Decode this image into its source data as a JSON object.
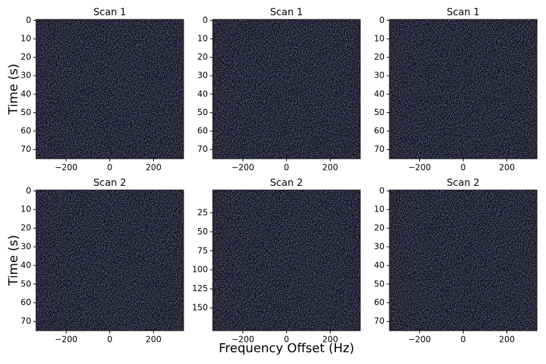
{
  "chart_data": [
    {
      "type": "heatmap",
      "title": "Scan 1",
      "ylabel": "Time (s)",
      "xlim": [
        -338,
        338
      ],
      "ylim": [
        75,
        -0.5
      ],
      "xticks": [
        {
          "value": -200,
          "label": "−200"
        },
        0,
        200
      ],
      "yticks": [
        0,
        10,
        20,
        30,
        40,
        50,
        60,
        70
      ]
    },
    {
      "type": "heatmap",
      "title": "Scan 1",
      "xlim": [
        -338,
        338
      ],
      "ylim": [
        75,
        -0.5
      ],
      "xticks": [
        {
          "value": -200,
          "label": "−200"
        },
        0,
        200
      ],
      "yticks": [
        0,
        10,
        20,
        30,
        40,
        50,
        60,
        70
      ]
    },
    {
      "type": "heatmap",
      "title": "Scan 1",
      "xlim": [
        -338,
        338
      ],
      "ylim": [
        75,
        -0.5
      ],
      "xticks": [
        {
          "value": -200,
          "label": "−200"
        },
        0,
        200
      ],
      "yticks": [
        0,
        10,
        20,
        30,
        40,
        50,
        60,
        70
      ]
    },
    {
      "type": "heatmap",
      "title": "Scan 2",
      "ylabel": "Time (s)",
      "xlim": [
        -338,
        338
      ],
      "ylim": [
        75,
        -0.5
      ],
      "xticks": [
        {
          "value": -200,
          "label": "−200"
        },
        0,
        200
      ],
      "yticks": [
        0,
        10,
        20,
        30,
        40,
        50,
        60,
        70
      ]
    },
    {
      "type": "heatmap",
      "title": "Scan 2",
      "xlabel": "Frequency Offset (Hz)",
      "xlim": [
        -338,
        338
      ],
      "ylim": [
        180,
        -5
      ],
      "xticks": [
        {
          "value": -200,
          "label": "−200"
        },
        0,
        200
      ],
      "yticks": [
        25,
        50,
        75,
        100,
        125,
        150
      ]
    },
    {
      "type": "heatmap",
      "title": "Scan 2",
      "xlim": [
        -338,
        338
      ],
      "ylim": [
        75,
        -0.5
      ],
      "xticks": [
        {
          "value": -200,
          "label": "−200"
        },
        0,
        200
      ],
      "yticks": [
        0,
        10,
        20,
        30,
        40,
        50,
        60,
        70
      ]
    }
  ]
}
